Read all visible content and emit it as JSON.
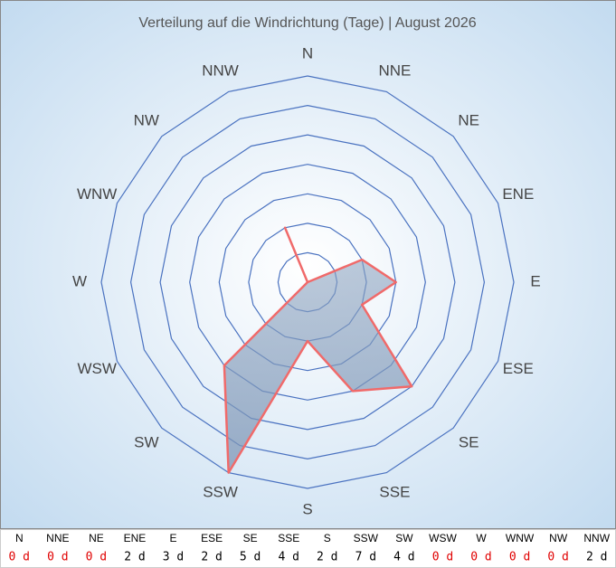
{
  "chart_data": {
    "type": "radar",
    "title": "Verteilung auf die Windrichtung (Tage) | August 2026",
    "categories": [
      "N",
      "NNE",
      "NE",
      "ENE",
      "E",
      "ESE",
      "SE",
      "SSE",
      "S",
      "SSW",
      "SW",
      "WSW",
      "W",
      "WNW",
      "NW",
      "NNW"
    ],
    "values": [
      0,
      0,
      0,
      2,
      3,
      2,
      5,
      4,
      2,
      7,
      4,
      0,
      0,
      0,
      0,
      2
    ],
    "value_labels": [
      "0 d",
      "0 d",
      "0 d",
      "2 d",
      "3 d",
      "2 d",
      "5 d",
      "4 d",
      "2 d",
      "7 d",
      "4 d",
      "0 d",
      "0 d",
      "0 d",
      "0 d",
      "2 d"
    ],
    "color": "#f06a6a",
    "zero_color": "#e00000",
    "rlim": [
      0,
      7
    ],
    "rticks": [
      1,
      2,
      3,
      4,
      5,
      6,
      7
    ],
    "grid": true
  }
}
